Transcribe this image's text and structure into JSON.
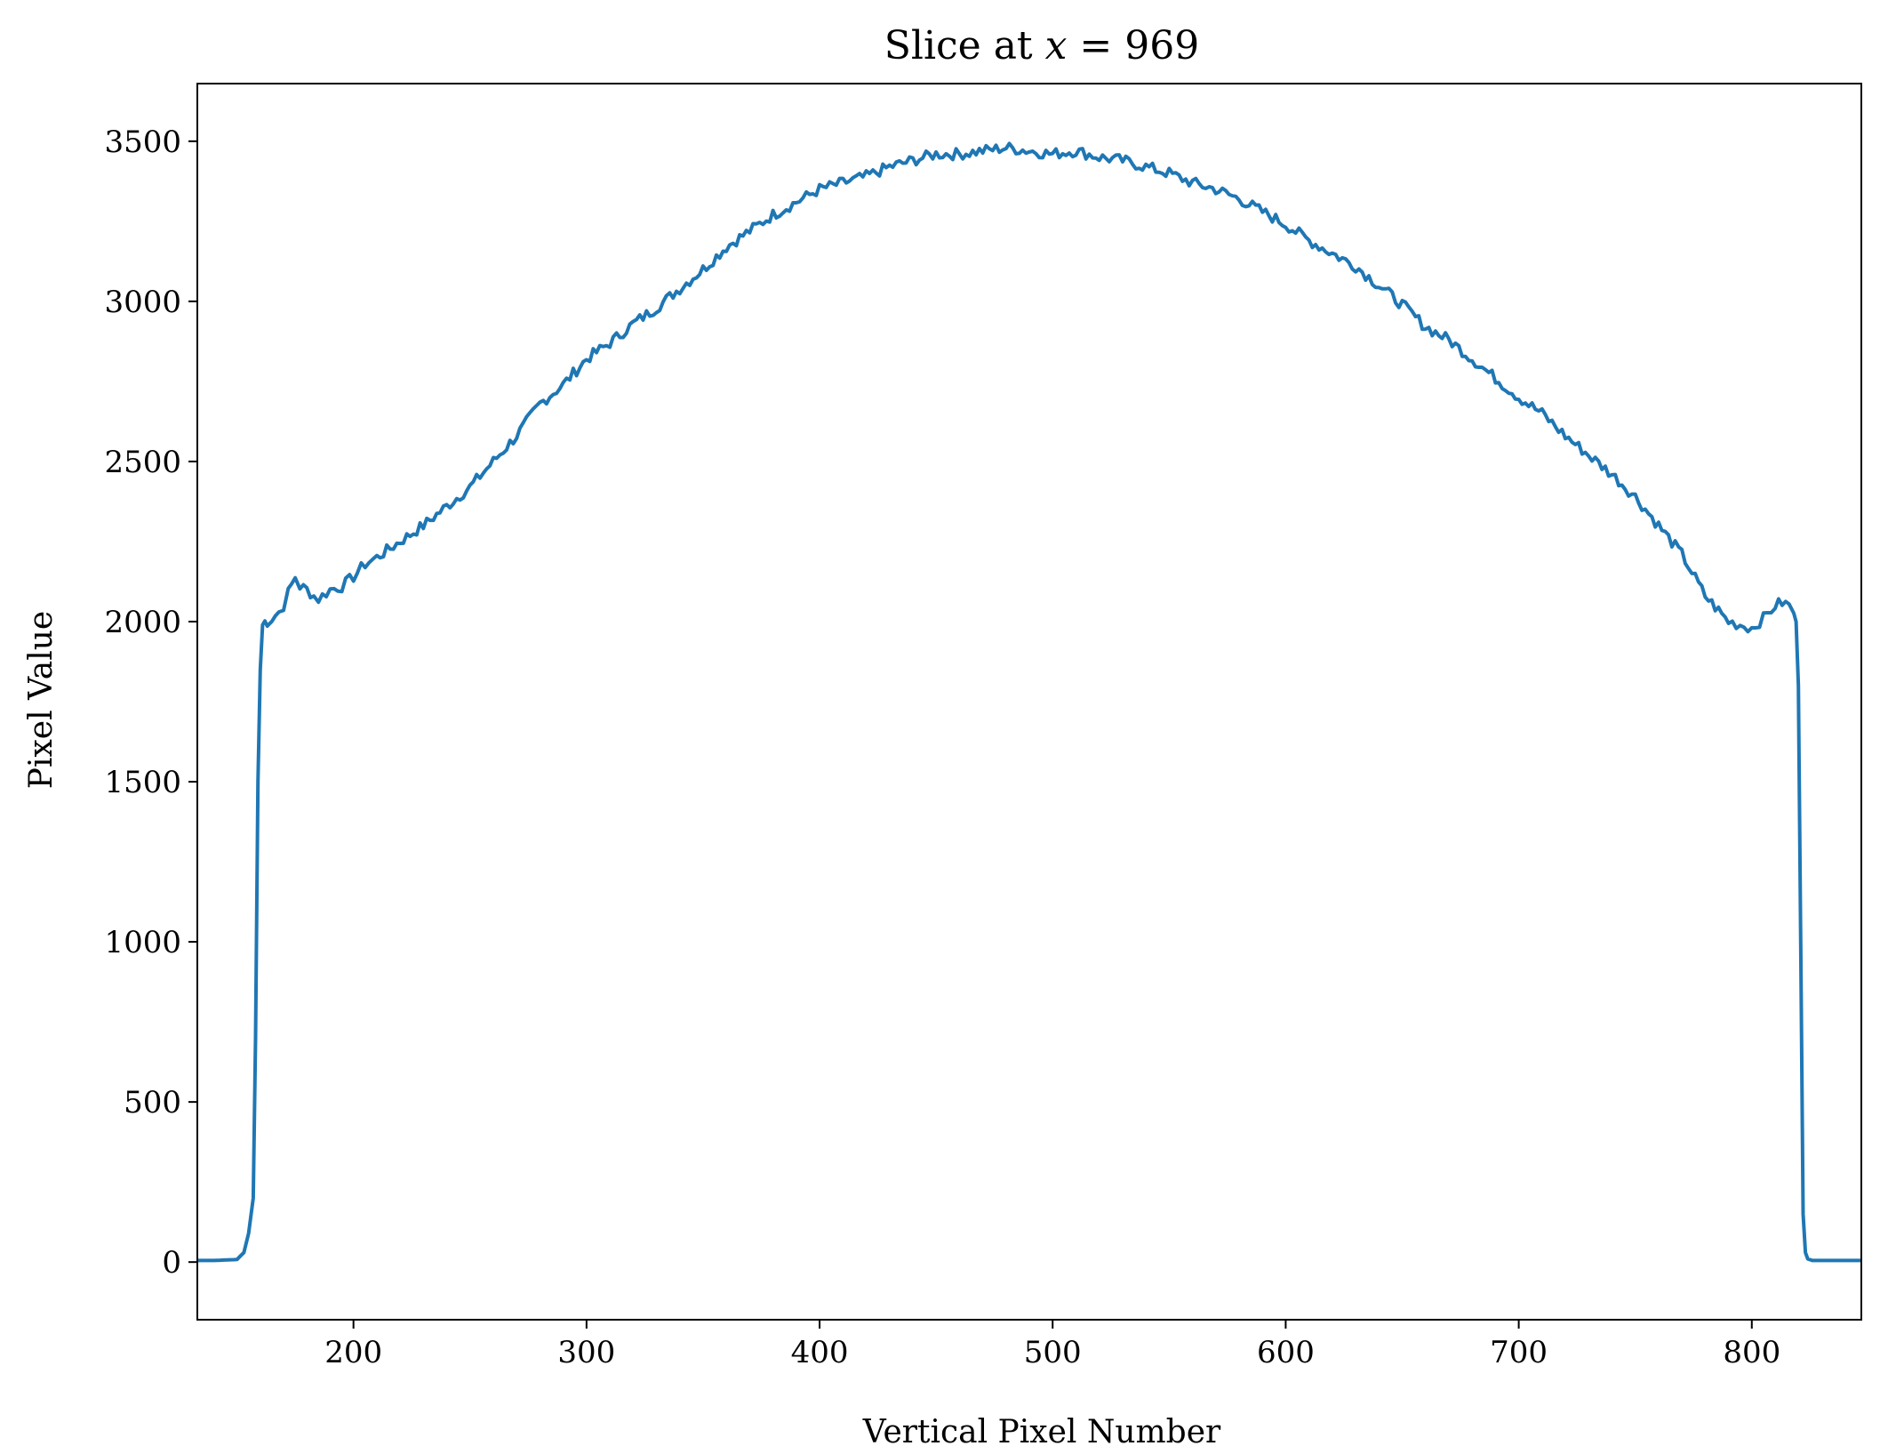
{
  "chart_data": {
    "type": "line",
    "title_prefix": "Slice at ",
    "title_var": "x",
    "title_suffix": " = 969",
    "xlabel": "Vertical Pixel Number",
    "ylabel": "Pixel Value",
    "xlim": [
      133,
      847
    ],
    "ylim": [
      -180,
      3680
    ],
    "xticks": [
      200,
      300,
      400,
      500,
      600,
      700,
      800
    ],
    "yticks": [
      0,
      500,
      1000,
      1500,
      2000,
      2500,
      3000,
      3500
    ],
    "grid": false,
    "legend": "none",
    "line_color": "#1f77b4",
    "series": [
      {
        "x": [
          133,
          140,
          150,
          153,
          155,
          157,
          158,
          159,
          160,
          161,
          162,
          163,
          165,
          168,
          170,
          172,
          175,
          177,
          180,
          183,
          185,
          190,
          195,
          200,
          205,
          210,
          220,
          230,
          240,
          250,
          260,
          270,
          280,
          290,
          300,
          310,
          320,
          330,
          340,
          350,
          360,
          370,
          380,
          390,
          400,
          410,
          420,
          430,
          440,
          450,
          460,
          470,
          480,
          490,
          500,
          510,
          520,
          530,
          540,
          550,
          560,
          570,
          580,
          590,
          600,
          610,
          620,
          630,
          640,
          650,
          660,
          670,
          680,
          690,
          700,
          710,
          720,
          730,
          740,
          750,
          760,
          770,
          780,
          790,
          795,
          800,
          805,
          810,
          813,
          816,
          818,
          819,
          820,
          821,
          822,
          823,
          824,
          826,
          830,
          840,
          847
        ],
        "y": [
          5,
          5,
          8,
          30,
          90,
          200,
          700,
          1500,
          1850,
          1990,
          2000,
          2000,
          2010,
          2030,
          2050,
          2090,
          2140,
          2110,
          2100,
          2080,
          2070,
          2100,
          2110,
          2140,
          2180,
          2200,
          2250,
          2300,
          2360,
          2420,
          2500,
          2580,
          2680,
          2740,
          2820,
          2870,
          2930,
          2980,
          3040,
          3100,
          3170,
          3220,
          3270,
          3310,
          3350,
          3370,
          3390,
          3420,
          3440,
          3460,
          3460,
          3470,
          3480,
          3470,
          3460,
          3470,
          3450,
          3440,
          3420,
          3400,
          3370,
          3350,
          3320,
          3280,
          3240,
          3190,
          3150,
          3110,
          3050,
          2990,
          2920,
          2880,
          2820,
          2760,
          2700,
          2650,
          2580,
          2520,
          2460,
          2390,
          2300,
          2210,
          2080,
          2000,
          1990,
          1980,
          2010,
          2050,
          2060,
          2050,
          2030,
          2000,
          1800,
          1000,
          150,
          30,
          10,
          5,
          5,
          5,
          5
        ]
      }
    ]
  }
}
